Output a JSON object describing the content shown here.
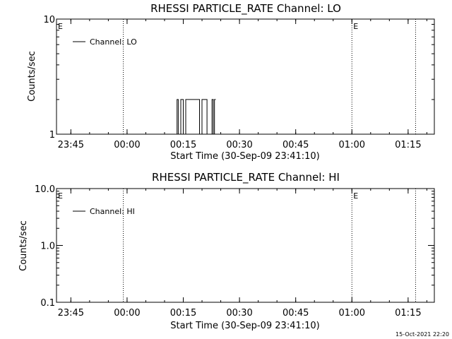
{
  "colors": {
    "background": "#ffffff",
    "foreground": "#000000"
  },
  "footer": {
    "timestamp": "15-Oct-2021 22:20"
  },
  "chart_data": [
    {
      "type": "line",
      "title": "RHESSI PARTICLE_RATE Channel: LO",
      "xlabel": "Start Time (30-Sep-09 23:41:10)",
      "ylabel": "Counts/sec",
      "yscale": "log",
      "ylim": [
        1,
        10
      ],
      "y_tick_labels": [
        "1",
        "10"
      ],
      "y_tick_values": [
        1,
        10
      ],
      "xlim": [
        "23:41:10",
        "01:22:00"
      ],
      "x_tick_labels": [
        "23:45",
        "00:00",
        "00:15",
        "00:30",
        "00:45",
        "01:00",
        "01:15"
      ],
      "x_tick_values": [
        "23:45",
        "00:00",
        "00:15",
        "00:30",
        "00:45",
        "01:00",
        "01:15"
      ],
      "event_lines": [
        "23:59",
        "01:00",
        "01:17"
      ],
      "event_markers": [
        "E",
        "E"
      ],
      "event_marker_times": [
        "23:41:10",
        "01:00"
      ],
      "grid": false,
      "legend_position": "top-left",
      "series": [
        {
          "name": "Channel: LO",
          "x": [
            "00:13:00",
            "00:13:20",
            "00:13:20",
            "00:13:40",
            "00:13:40",
            "00:14:00",
            "00:14:00",
            "00:14:20",
            "00:14:20",
            "00:15:00",
            "00:15:00",
            "00:15:40",
            "00:15:40",
            "00:16:40",
            "00:16:40",
            "00:17:40",
            "00:17:40",
            "00:18:40",
            "00:18:40",
            "00:19:20",
            "00:19:20",
            "00:20:00",
            "00:20:00",
            "00:20:40",
            "00:20:40",
            "00:21:20",
            "00:21:20",
            "00:22:00",
            "00:22:00",
            "00:22:40",
            "00:22:40",
            "00:23:00",
            "00:23:00",
            "00:23:20",
            "00:23:20",
            "00:23:40"
          ],
          "y": [
            1,
            1,
            2,
            2,
            1,
            1,
            1,
            1,
            2,
            2,
            1,
            1,
            2,
            2,
            2,
            2,
            2,
            2,
            2,
            2,
            1,
            1,
            2,
            2,
            2,
            2,
            1,
            1,
            1,
            1,
            2,
            2,
            1,
            1,
            2,
            2
          ]
        }
      ]
    },
    {
      "type": "line",
      "title": "RHESSI PARTICLE_RATE Channel: HI",
      "xlabel": "Start Time (30-Sep-09 23:41:10)",
      "ylabel": "Counts/sec",
      "yscale": "log",
      "ylim": [
        0.1,
        10
      ],
      "y_tick_labels": [
        "0.1",
        "1.0",
        "10.0"
      ],
      "y_tick_values": [
        0.1,
        1,
        10
      ],
      "xlim": [
        "23:41:10",
        "01:22:00"
      ],
      "x_tick_labels": [
        "23:45",
        "00:00",
        "00:15",
        "00:30",
        "00:45",
        "01:00",
        "01:15"
      ],
      "x_tick_values": [
        "23:45",
        "00:00",
        "00:15",
        "00:30",
        "00:45",
        "01:00",
        "01:15"
      ],
      "event_lines": [
        "23:59",
        "01:00",
        "01:17"
      ],
      "event_markers": [
        "E",
        "E"
      ],
      "event_marker_times": [
        "23:41:10",
        "01:00"
      ],
      "grid": false,
      "legend_position": "top-left",
      "series": [
        {
          "name": "Channel: HI",
          "x": [],
          "y": []
        }
      ]
    }
  ]
}
